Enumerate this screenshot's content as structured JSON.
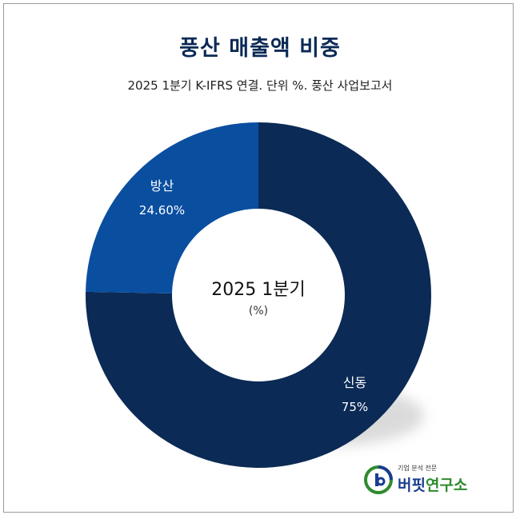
{
  "title": "풍산 매출액 비중",
  "subtitle": "2025 1분기 K-IFRS 연결. 단위 %. 풍산 사업보고서",
  "chart_data": {
    "type": "pie",
    "variant": "donut",
    "center_label": "2025 1분기",
    "center_unit": "(%)",
    "slices": [
      {
        "name": "신동",
        "value": 75,
        "value_label": "75%",
        "color": "#0b2a55"
      },
      {
        "name": "방산",
        "value": 24.6,
        "value_label": "24.60%",
        "color": "#0a4ea0"
      }
    ],
    "label_color": "#ffffff"
  },
  "logo": {
    "tagline": "기업 분석 전문",
    "name_part1": "버핏",
    "name_part2": "연구소",
    "color_primary": "#1a3d8f",
    "color_accent": "#2e8b2e"
  }
}
